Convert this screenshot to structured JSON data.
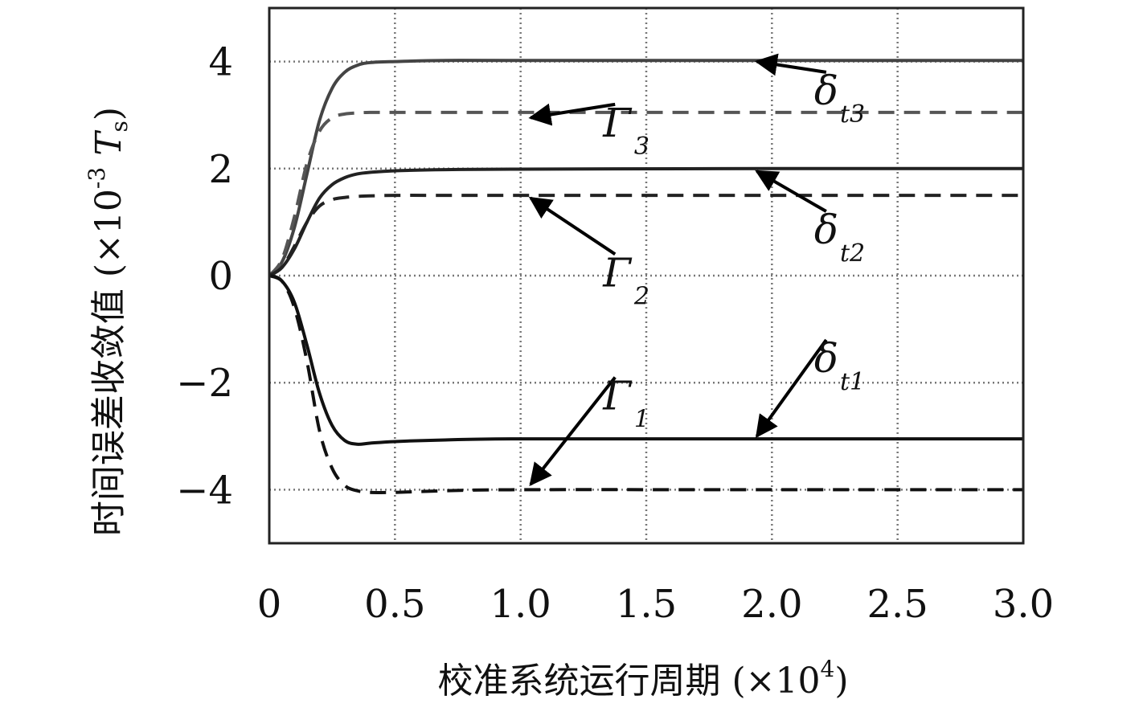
{
  "chart_data": {
    "type": "line",
    "xlabel": "校准系统运行周期",
    "xlabel_unit_prefix": " (×10",
    "xlabel_unit_exp": "4",
    "xlabel_unit_suffix": ")",
    "ylabel": "时间误差收敛值",
    "ylabel_unit_prefix": "(×10",
    "ylabel_unit_exp": "-3",
    "ylabel_unit_T": "T",
    "ylabel_unit_sub": "s",
    "ylabel_unit_suffix": ")",
    "xlim": [
      0,
      3.0
    ],
    "ylim": [
      -5,
      5
    ],
    "x_ticks": [
      0,
      0.5,
      1.0,
      1.5,
      2.0,
      2.5,
      3.0
    ],
    "x_tick_labels": [
      "0",
      "0.5",
      "1.0",
      "1.5",
      "2.0",
      "2.5",
      "3.0"
    ],
    "y_ticks": [
      4,
      2,
      0,
      -2,
      -4
    ],
    "y_tick_labels": [
      "4",
      "2",
      "0",
      "−2",
      "−4"
    ],
    "grid": true,
    "grid_style": "dotted",
    "series": [
      {
        "key": "dt3",
        "style": "solid",
        "color": "#444444",
        "x": [
          0,
          0.05,
          0.1,
          0.15,
          0.2,
          0.25,
          0.3,
          0.35,
          0.4,
          0.5,
          0.7,
          1.0,
          2.0,
          3.0
        ],
        "y": [
          0,
          0.25,
          0.9,
          1.9,
          2.9,
          3.5,
          3.8,
          3.93,
          3.98,
          4.0,
          4.02,
          4.02,
          4.02,
          4.02
        ]
      },
      {
        "key": "G3",
        "style": "dashed",
        "color": "#555555",
        "x": [
          0,
          0.05,
          0.1,
          0.15,
          0.2,
          0.25,
          0.3,
          0.35,
          0.4,
          0.5,
          0.7,
          1.0,
          2.0,
          3.0
        ],
        "y": [
          0,
          0.3,
          1.1,
          2.1,
          2.7,
          2.95,
          3.02,
          3.04,
          3.05,
          3.05,
          3.05,
          3.05,
          3.05,
          3.05
        ]
      },
      {
        "key": "dt2",
        "style": "solid",
        "color": "#222222",
        "x": [
          0,
          0.05,
          0.1,
          0.15,
          0.2,
          0.25,
          0.3,
          0.35,
          0.4,
          0.5,
          0.7,
          1.0,
          2.0,
          3.0
        ],
        "y": [
          0,
          0.15,
          0.5,
          1.0,
          1.45,
          1.7,
          1.83,
          1.9,
          1.93,
          1.96,
          1.98,
          1.99,
          2.0,
          2.0
        ]
      },
      {
        "key": "G2",
        "style": "dashed",
        "color": "#222222",
        "x": [
          0,
          0.05,
          0.1,
          0.15,
          0.2,
          0.25,
          0.3,
          0.35,
          0.4,
          0.5,
          0.7,
          1.0,
          2.0,
          3.0
        ],
        "y": [
          0,
          0.15,
          0.55,
          1.0,
          1.3,
          1.42,
          1.46,
          1.48,
          1.49,
          1.5,
          1.5,
          1.5,
          1.5,
          1.5
        ]
      },
      {
        "key": "dt1",
        "style": "solid",
        "color": "#111111",
        "x": [
          0,
          0.05,
          0.1,
          0.15,
          0.2,
          0.25,
          0.3,
          0.35,
          0.4,
          0.5,
          0.7,
          1.0,
          2.0,
          3.0
        ],
        "y": [
          0,
          -0.1,
          -0.5,
          -1.3,
          -2.2,
          -2.8,
          -3.08,
          -3.15,
          -3.13,
          -3.1,
          -3.07,
          -3.05,
          -3.05,
          -3.05
        ]
      },
      {
        "key": "G1",
        "style": "dashed",
        "color": "#111111",
        "x": [
          0,
          0.05,
          0.1,
          0.15,
          0.2,
          0.25,
          0.3,
          0.35,
          0.4,
          0.5,
          0.7,
          1.0,
          2.0,
          3.0
        ],
        "y": [
          0,
          -0.1,
          -0.6,
          -1.6,
          -2.9,
          -3.6,
          -3.92,
          -4.02,
          -4.05,
          -4.05,
          -4.02,
          -4.0,
          -4.0,
          -4.0
        ]
      }
    ],
    "annotations": [
      {
        "key": "delta_t3",
        "main": "δ",
        "sub1": "t",
        "sub2": "3",
        "text_xy": [
          2.2,
          3.2
        ],
        "arrow_to": [
          1.94,
          4.0
        ]
      },
      {
        "key": "Gamma_3",
        "main": "Γ",
        "sub1": "",
        "sub2": "3",
        "text_xy": [
          1.36,
          2.6
        ],
        "arrow_to": [
          1.04,
          2.95
        ]
      },
      {
        "key": "delta_t2",
        "main": "δ",
        "sub1": "t",
        "sub2": "2",
        "text_xy": [
          2.2,
          0.6
        ],
        "arrow_to": [
          1.94,
          1.95
        ]
      },
      {
        "key": "Gamma_2",
        "main": "Γ",
        "sub1": "",
        "sub2": "2",
        "text_xy": [
          1.36,
          -0.2
        ],
        "arrow_to": [
          1.04,
          1.45
        ]
      },
      {
        "key": "delta_t1",
        "main": "δ",
        "sub1": "t",
        "sub2": "1",
        "text_xy": [
          2.2,
          -1.8
        ],
        "arrow_to": [
          1.94,
          -3.0
        ]
      },
      {
        "key": "Gamma_1",
        "main": "Γ",
        "sub1": "",
        "sub2": "1",
        "text_xy": [
          1.36,
          -2.5
        ],
        "arrow_to": [
          1.04,
          -3.9
        ]
      }
    ]
  }
}
